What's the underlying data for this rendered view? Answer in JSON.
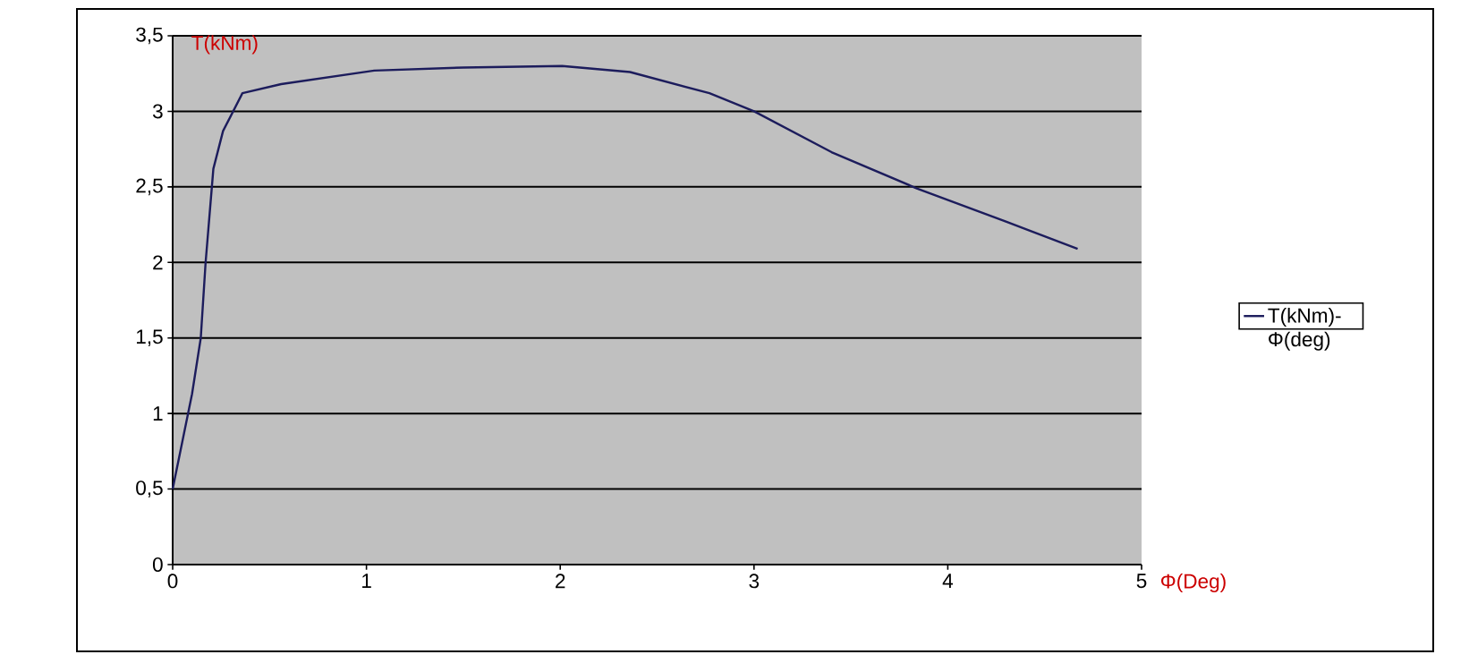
{
  "chart_data": {
    "type": "line",
    "xlabel": "Φ(Deg)",
    "ylabel": "T(kNm)",
    "x": [
      0,
      0.1,
      0.145,
      0.17,
      0.21,
      0.26,
      0.36,
      0.56,
      1.04,
      1.5,
      2.01,
      2.36,
      2.77,
      3.0,
      3.4,
      3.84,
      4.3,
      4.67
    ],
    "series": [
      {
        "name": "T(kNm)-Φ(deg)",
        "color": "#1c1c5c",
        "values": [
          0.5,
          1.13,
          1.5,
          2.0,
          2.62,
          2.87,
          3.12,
          3.18,
          3.27,
          3.29,
          3.3,
          3.26,
          3.12,
          3.0,
          2.73,
          2.49,
          2.27,
          2.09
        ]
      }
    ],
    "xlim": [
      0,
      5
    ],
    "ylim": [
      0,
      3.5
    ],
    "xticks": [
      0,
      1,
      2,
      3,
      4,
      5
    ],
    "yticks": [
      0,
      {
        "value": 0.5,
        "label": "0,5"
      },
      1,
      {
        "value": 1.5,
        "label": "1,5"
      },
      2,
      {
        "value": 2.5,
        "label": "2,5"
      },
      3,
      {
        "value": 3.5,
        "label": "3,5"
      }
    ],
    "grid": "y",
    "legend": "right",
    "line_style": "solid",
    "marker": "none"
  }
}
